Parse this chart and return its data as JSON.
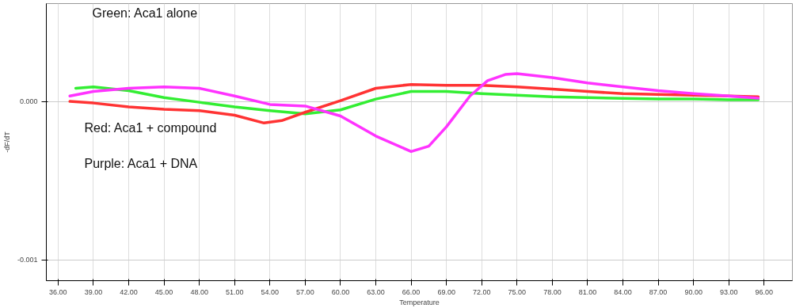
{
  "chart_data": {
    "type": "line",
    "xlabel": "Temperature",
    "ylabel": "-dF/dT",
    "annotations": [
      "Green: Aca1 alone",
      "Red: Aca1 + compound",
      "Purple: Aca1 + DNA"
    ],
    "xlim": [
      35.0,
      98.4
    ],
    "ylim": [
      -0.00113,
      0.000617
    ],
    "xticks": [
      {
        "value": 36,
        "label": "36.00"
      },
      {
        "value": 39,
        "label": "39.00"
      },
      {
        "value": 42,
        "label": "42.00"
      },
      {
        "value": 45,
        "label": "45.00"
      },
      {
        "value": 48,
        "label": "48.00"
      },
      {
        "value": 51,
        "label": "51.00"
      },
      {
        "value": 54,
        "label": "54.00"
      },
      {
        "value": 57,
        "label": "57.00"
      },
      {
        "value": 60,
        "label": "60.00"
      },
      {
        "value": 63,
        "label": "63.00"
      },
      {
        "value": 66,
        "label": "66.00"
      },
      {
        "value": 69,
        "label": "69.00"
      },
      {
        "value": 72,
        "label": "72.00"
      },
      {
        "value": 75,
        "label": "75.00"
      },
      {
        "value": 78,
        "label": "78.00"
      },
      {
        "value": 81,
        "label": "81.00"
      },
      {
        "value": 84,
        "label": "84.00"
      },
      {
        "value": 87,
        "label": "87.00"
      },
      {
        "value": 90,
        "label": "90.00"
      },
      {
        "value": 93,
        "label": "93.00"
      },
      {
        "value": 96,
        "label": "96.00"
      }
    ],
    "yticks": [
      {
        "value": 0,
        "label": "0.000"
      },
      {
        "value": -0.001,
        "label": "-0.001"
      }
    ],
    "grid": true,
    "line_style": "solid",
    "series": [
      {
        "color": "#33ee33",
        "x": [
          37.5,
          39,
          42,
          45,
          48,
          51,
          54,
          57,
          60,
          63,
          66,
          69,
          72,
          75,
          78,
          81,
          84,
          87,
          90,
          93,
          95.5
        ],
        "values": [
          8.3e-05,
          9.2e-05,
          6.8e-05,
          2.4e-05,
          -5e-06,
          -3.4e-05,
          -5.8e-05,
          -7.8e-05,
          -5.3e-05,
          1.5e-05,
          6.3e-05,
          6.3e-05,
          4.9e-05,
          3.9e-05,
          2.9e-05,
          2.4e-05,
          1.9e-05,
          1.5e-05,
          1.5e-05,
          1e-05,
          1e-05
        ]
      },
      {
        "color": "#ff3333",
        "x": [
          37,
          39,
          42,
          45,
          48,
          51,
          53.5,
          55,
          57,
          60,
          63,
          66,
          69,
          72,
          75,
          78,
          81,
          84,
          87,
          90,
          93,
          95.5
        ],
        "values": [
          0,
          -1e-05,
          -3.4e-05,
          -4.9e-05,
          -5.8e-05,
          -8.7e-05,
          -0.000136,
          -0.000121,
          -6.8e-05,
          5e-06,
          8.3e-05,
          0.000107,
          0.000102,
          0.000102,
          9.2e-05,
          7.8e-05,
          6.3e-05,
          4.9e-05,
          4.4e-05,
          3.9e-05,
          3.4e-05,
          2.9e-05
        ]
      },
      {
        "color": "#ff33ff",
        "x": [
          37,
          39,
          42,
          45,
          48,
          51,
          54,
          57,
          60,
          63,
          66,
          67.5,
          69,
          71,
          72.5,
          74,
          75,
          78,
          81,
          84,
          87,
          90,
          93,
          95.5
        ],
        "values": [
          3.4e-05,
          6.3e-05,
          8.3e-05,
          9.2e-05,
          8.3e-05,
          3.4e-05,
          -1.9e-05,
          -2.9e-05,
          -9.2e-05,
          -0.000218,
          -0.000316,
          -0.000282,
          -0.00016,
          3.4e-05,
          0.000131,
          0.00017,
          0.000175,
          0.00015,
          0.000117,
          9.2e-05,
          6.8e-05,
          4.9e-05,
          3.4e-05,
          2e-05
        ]
      }
    ]
  }
}
